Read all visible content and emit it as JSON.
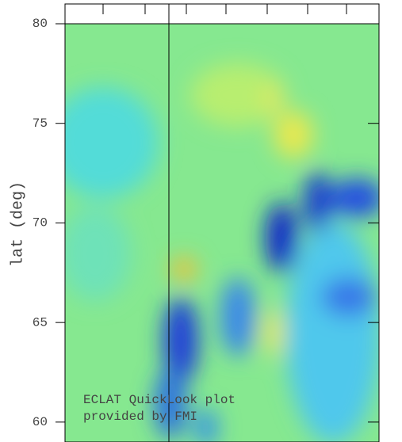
{
  "chart_data": {
    "type": "heatmap",
    "ylabel": "lat (deg)",
    "ylim": [
      59,
      80
    ],
    "yticks": [
      60,
      65,
      70,
      75,
      80
    ],
    "annotations": [
      "ECLAT QuickLook plot",
      "provided by FMI"
    ]
  }
}
